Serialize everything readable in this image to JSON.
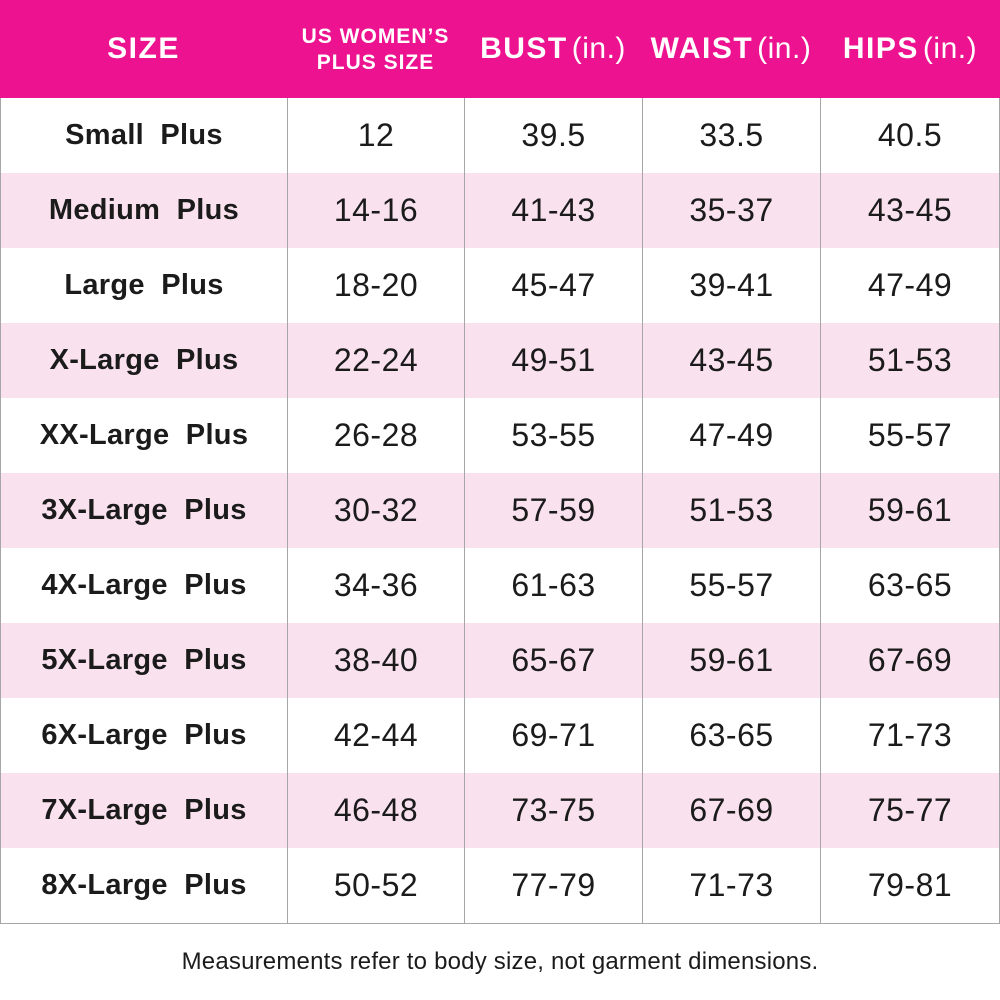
{
  "theme": {
    "header_bg": "#ED1390",
    "header_text": "#FFFFFF",
    "row_bg": "#FFFFFF",
    "row_alt_bg": "#F9E2EE",
    "grid_line": "#A6A6A6",
    "text": "#1B1B1B"
  },
  "chart_data": {
    "type": "table",
    "columns": [
      {
        "label": "SIZE"
      },
      {
        "line1": "US WOMEN’S",
        "line2": "PLUS SIZE"
      },
      {
        "label": "BUST",
        "unit": "(in.)"
      },
      {
        "label": "WAIST",
        "unit": "(in.)"
      },
      {
        "label": "HIPS",
        "unit": "(in.)"
      }
    ],
    "rows": [
      [
        "Small Plus",
        "12",
        "39.5",
        "33.5",
        "40.5"
      ],
      [
        "Medium Plus",
        "14-16",
        "41-43",
        "35-37",
        "43-45"
      ],
      [
        "Large Plus",
        "18-20",
        "45-47",
        "39-41",
        "47-49"
      ],
      [
        "X-Large Plus",
        "22-24",
        "49-51",
        "43-45",
        "51-53"
      ],
      [
        "XX-Large Plus",
        "26-28",
        "53-55",
        "47-49",
        "55-57"
      ],
      [
        "3X-Large Plus",
        "30-32",
        "57-59",
        "51-53",
        "59-61"
      ],
      [
        "4X-Large Plus",
        "34-36",
        "61-63",
        "55-57",
        "63-65"
      ],
      [
        "5X-Large Plus",
        "38-40",
        "65-67",
        "59-61",
        "67-69"
      ],
      [
        "6X-Large Plus",
        "42-44",
        "69-71",
        "63-65",
        "71-73"
      ],
      [
        "7X-Large Plus",
        "46-48",
        "73-75",
        "67-69",
        "75-77"
      ],
      [
        "8X-Large Plus",
        "50-52",
        "77-79",
        "71-73",
        "79-81"
      ]
    ],
    "footnote": "Measurements refer to body size, not garment dimensions."
  }
}
